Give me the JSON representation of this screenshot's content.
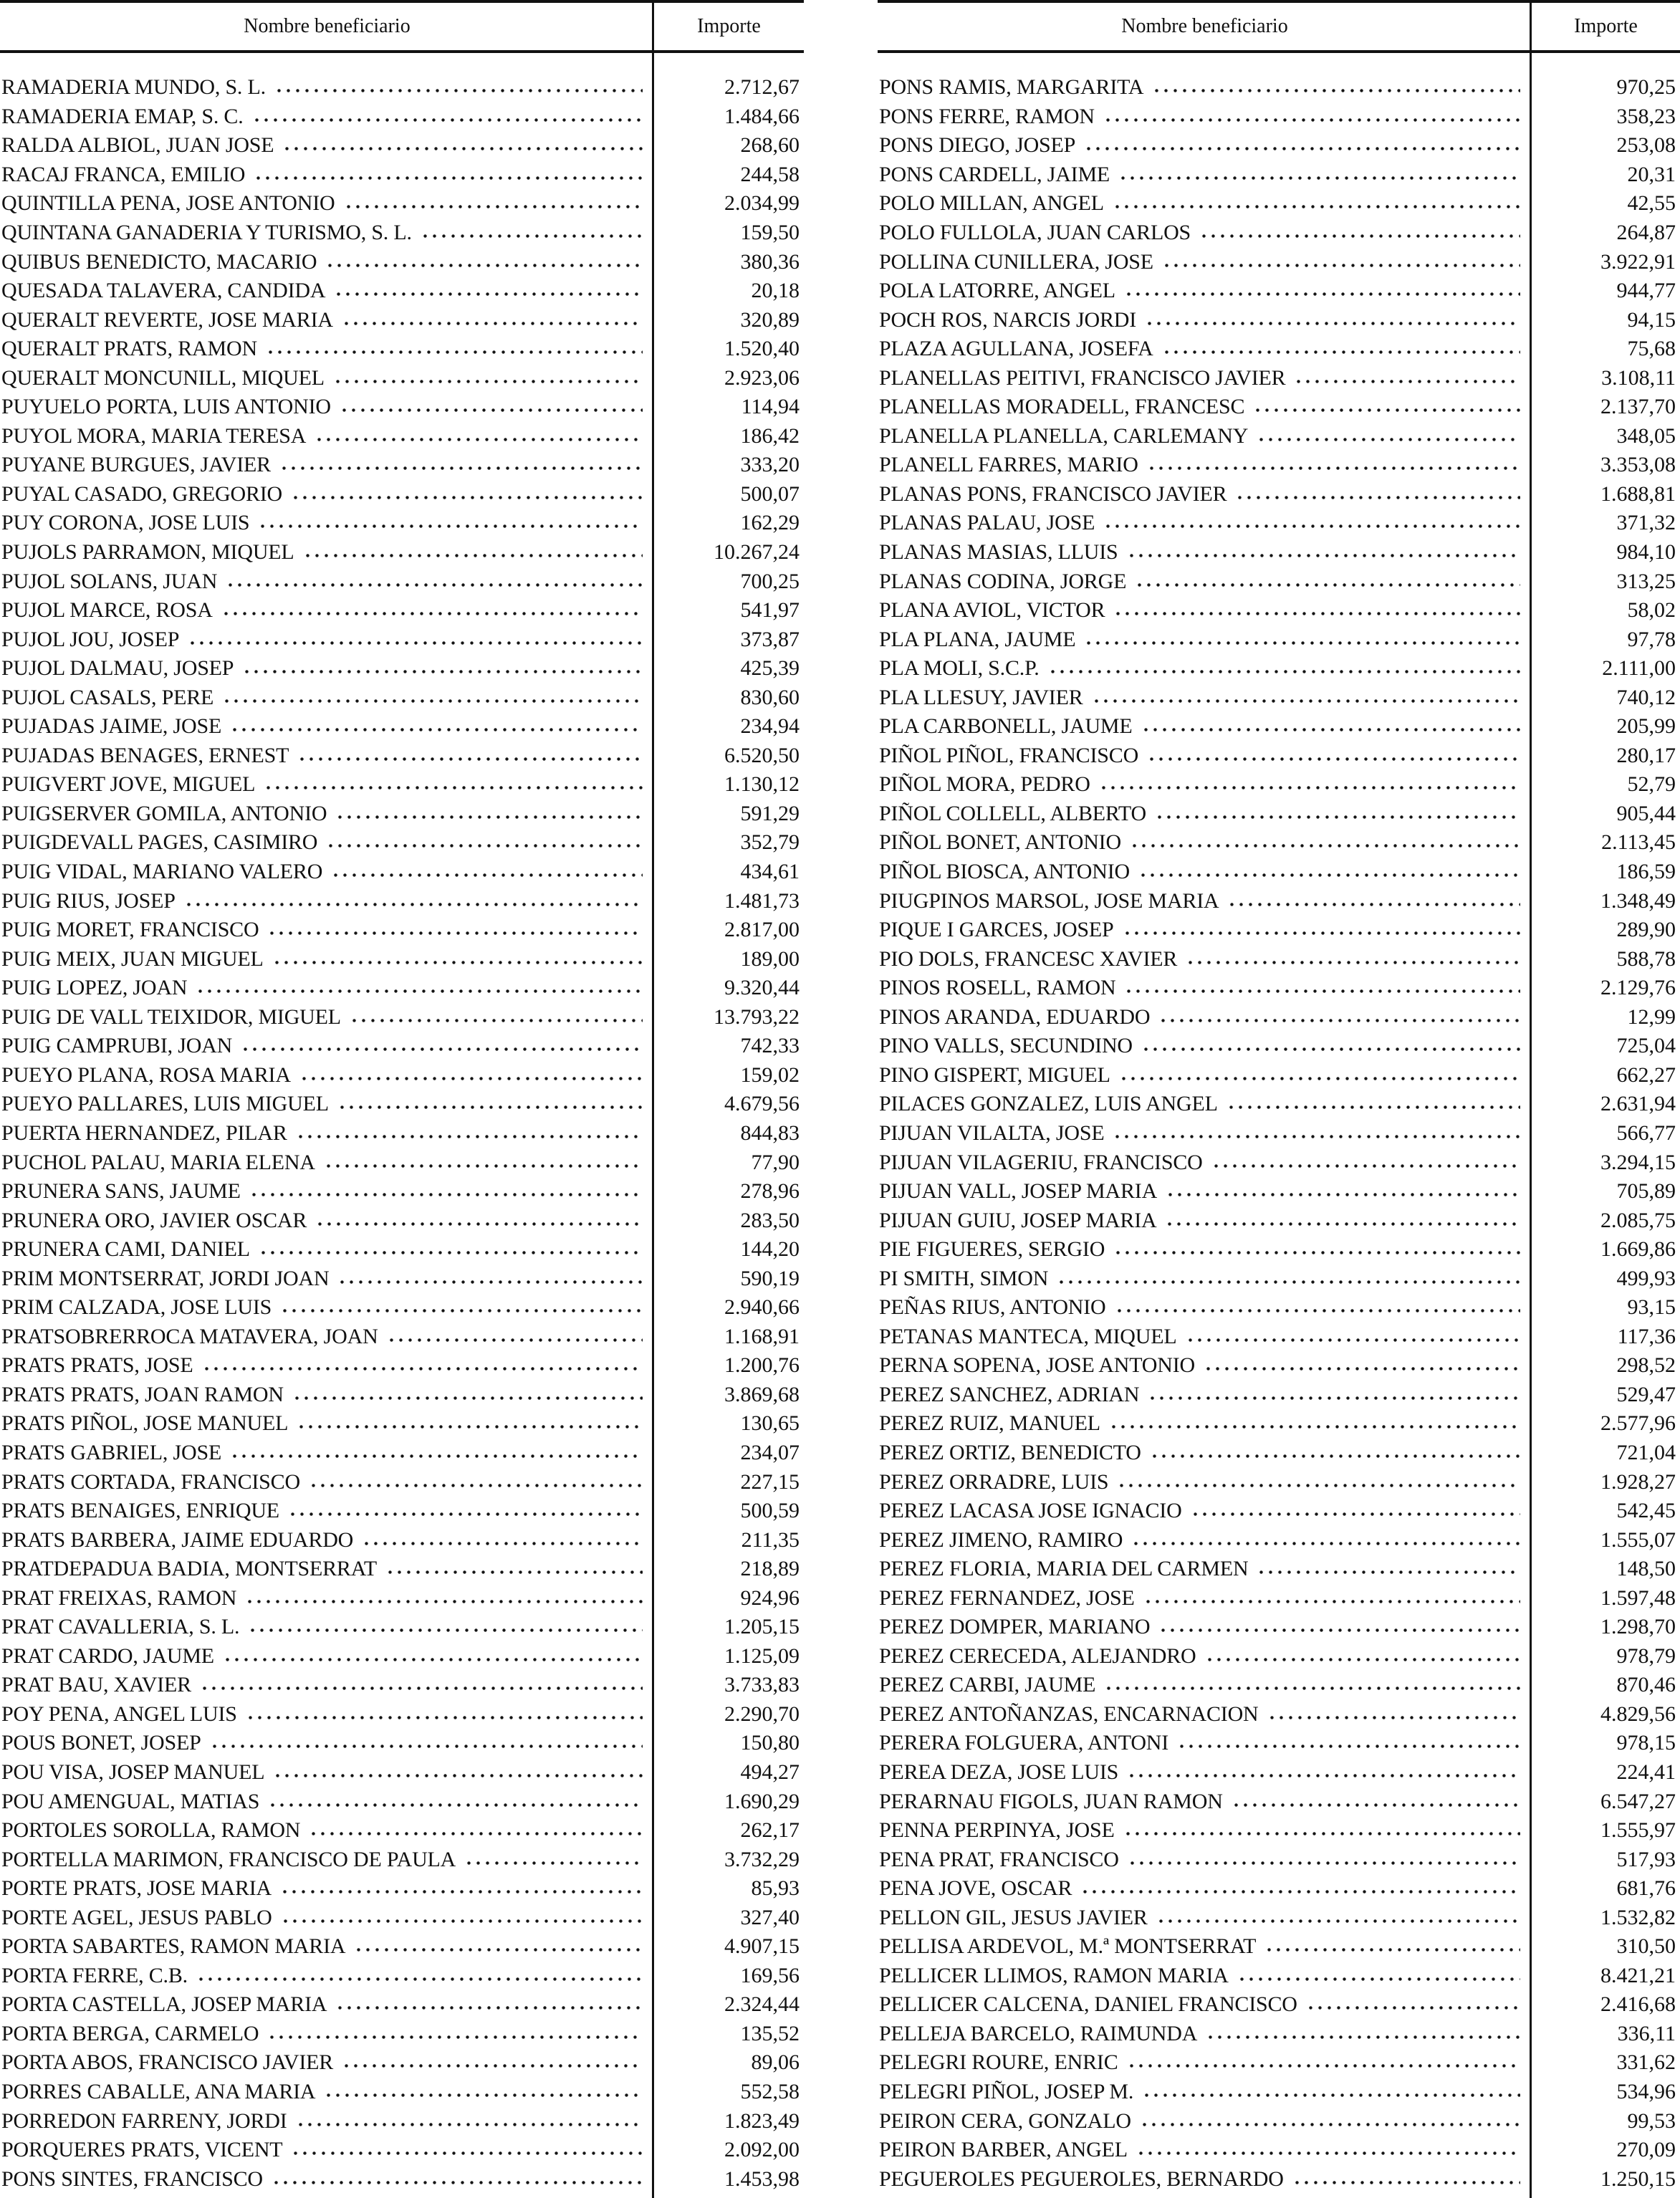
{
  "header": {
    "name_label": "Nombre beneficiario",
    "amount_label": "Importe"
  },
  "left_table": {
    "rows": [
      {
        "name": "RAMADERIA MUNDO, S. L.",
        "amount": "2.712,67"
      },
      {
        "name": "RAMADERIA EMAP, S. C.",
        "amount": "1.484,66"
      },
      {
        "name": "RALDA ALBIOL, JUAN JOSE",
        "amount": "268,60"
      },
      {
        "name": "RACAJ FRANCA, EMILIO",
        "amount": "244,58"
      },
      {
        "name": "QUINTILLA PENA, JOSE ANTONIO",
        "amount": "2.034,99"
      },
      {
        "name": "QUINTANA GANADERIA Y TURISMO, S. L.",
        "amount": "159,50"
      },
      {
        "name": "QUIBUS BENEDICTO, MACARIO",
        "amount": "380,36"
      },
      {
        "name": "QUESADA TALAVERA, CANDIDA",
        "amount": "20,18"
      },
      {
        "name": "QUERALT REVERTE, JOSE MARIA",
        "amount": "320,89"
      },
      {
        "name": "QUERALT PRATS, RAMON",
        "amount": "1.520,40"
      },
      {
        "name": "QUERALT MONCUNILL, MIQUEL",
        "amount": "2.923,06"
      },
      {
        "name": "PUYUELO PORTA, LUIS ANTONIO",
        "amount": "114,94"
      },
      {
        "name": "PUYOL MORA, MARIA TERESA",
        "amount": "186,42"
      },
      {
        "name": "PUYANE BURGUES, JAVIER",
        "amount": "333,20"
      },
      {
        "name": "PUYAL CASADO, GREGORIO",
        "amount": "500,07"
      },
      {
        "name": "PUY CORONA, JOSE LUIS",
        "amount": "162,29"
      },
      {
        "name": "PUJOLS PARRAMON, MIQUEL",
        "amount": "10.267,24"
      },
      {
        "name": "PUJOL SOLANS, JUAN",
        "amount": "700,25"
      },
      {
        "name": "PUJOL MARCE, ROSA",
        "amount": "541,97"
      },
      {
        "name": "PUJOL JOU, JOSEP",
        "amount": "373,87"
      },
      {
        "name": "PUJOL DALMAU, JOSEP",
        "amount": "425,39"
      },
      {
        "name": "PUJOL CASALS, PERE",
        "amount": "830,60"
      },
      {
        "name": "PUJADAS JAIME, JOSE",
        "amount": "234,94"
      },
      {
        "name": "PUJADAS BENAGES, ERNEST",
        "amount": "6.520,50"
      },
      {
        "name": "PUIGVERT JOVE, MIGUEL",
        "amount": "1.130,12"
      },
      {
        "name": "PUIGSERVER GOMILA, ANTONIO",
        "amount": "591,29"
      },
      {
        "name": "PUIGDEVALL PAGES, CASIMIRO",
        "amount": "352,79"
      },
      {
        "name": "PUIG VIDAL, MARIANO VALERO",
        "amount": "434,61"
      },
      {
        "name": "PUIG RIUS, JOSEP",
        "amount": "1.481,73"
      },
      {
        "name": "PUIG MORET, FRANCISCO",
        "amount": "2.817,00"
      },
      {
        "name": "PUIG MEIX, JUAN MIGUEL",
        "amount": "189,00"
      },
      {
        "name": "PUIG LOPEZ, JOAN",
        "amount": "9.320,44"
      },
      {
        "name": "PUIG DE VALL TEIXIDOR, MIGUEL",
        "amount": "13.793,22"
      },
      {
        "name": "PUIG CAMPRUBI, JOAN",
        "amount": "742,33"
      },
      {
        "name": "PUEYO PLANA, ROSA MARIA",
        "amount": "159,02"
      },
      {
        "name": "PUEYO PALLARES, LUIS MIGUEL",
        "amount": "4.679,56"
      },
      {
        "name": "PUERTA HERNANDEZ, PILAR",
        "amount": "844,83"
      },
      {
        "name": "PUCHOL PALAU, MARIA ELENA",
        "amount": "77,90"
      },
      {
        "name": "PRUNERA SANS, JAUME",
        "amount": "278,96"
      },
      {
        "name": "PRUNERA ORO, JAVIER OSCAR",
        "amount": "283,50"
      },
      {
        "name": "PRUNERA CAMI, DANIEL",
        "amount": "144,20"
      },
      {
        "name": "PRIM MONTSERRAT, JORDI JOAN",
        "amount": "590,19"
      },
      {
        "name": "PRIM CALZADA, JOSE LUIS",
        "amount": "2.940,66"
      },
      {
        "name": "PRATSOBRERROCA MATAVERA, JOAN",
        "amount": "1.168,91"
      },
      {
        "name": "PRATS PRATS, JOSE",
        "amount": "1.200,76"
      },
      {
        "name": "PRATS PRATS, JOAN RAMON",
        "amount": "3.869,68"
      },
      {
        "name": "PRATS PIÑOL, JOSE MANUEL",
        "amount": "130,65"
      },
      {
        "name": "PRATS GABRIEL, JOSE",
        "amount": "234,07"
      },
      {
        "name": "PRATS CORTADA, FRANCISCO",
        "amount": "227,15"
      },
      {
        "name": "PRATS BENAIGES, ENRIQUE",
        "amount": "500,59"
      },
      {
        "name": "PRATS BARBERA, JAIME EDUARDO",
        "amount": "211,35"
      },
      {
        "name": "PRATDEPADUA BADIA, MONTSERRAT",
        "amount": "218,89"
      },
      {
        "name": "PRAT FREIXAS, RAMON",
        "amount": "924,96"
      },
      {
        "name": "PRAT CAVALLERIA, S. L.",
        "amount": "1.205,15"
      },
      {
        "name": "PRAT CARDO, JAUME",
        "amount": "1.125,09"
      },
      {
        "name": "PRAT BAU, XAVIER",
        "amount": "3.733,83"
      },
      {
        "name": "POY PENA, ANGEL LUIS",
        "amount": "2.290,70"
      },
      {
        "name": "POUS BONET, JOSEP",
        "amount": "150,80"
      },
      {
        "name": "POU VISA, JOSEP MANUEL",
        "amount": "494,27"
      },
      {
        "name": "POU AMENGUAL, MATIAS",
        "amount": "1.690,29"
      },
      {
        "name": "PORTOLES SOROLLA, RAMON",
        "amount": "262,17"
      },
      {
        "name": "PORTELLA MARIMON, FRANCISCO DE PAULA",
        "amount": "3.732,29"
      },
      {
        "name": "PORTE PRATS, JOSE MARIA",
        "amount": "85,93"
      },
      {
        "name": "PORTE AGEL, JESUS PABLO",
        "amount": "327,40"
      },
      {
        "name": "PORTA SABARTES, RAMON MARIA",
        "amount": "4.907,15"
      },
      {
        "name": "PORTA FERRE, C.B.",
        "amount": "169,56"
      },
      {
        "name": "PORTA CASTELLA, JOSEP MARIA",
        "amount": "2.324,44"
      },
      {
        "name": "PORTA BERGA, CARMELO",
        "amount": "135,52"
      },
      {
        "name": "PORTA ABOS, FRANCISCO JAVIER",
        "amount": "89,06"
      },
      {
        "name": "PORRES CABALLE, ANA MARIA",
        "amount": "552,58"
      },
      {
        "name": "PORREDON FARRENY, JORDI",
        "amount": "1.823,49"
      },
      {
        "name": "PORQUERES PRATS, VICENT",
        "amount": "2.092,00"
      },
      {
        "name": "PONS SINTES, FRANCISCO",
        "amount": "1.453,98"
      }
    ]
  },
  "right_table": {
    "rows": [
      {
        "name": "PONS RAMIS, MARGARITA",
        "amount": "970,25"
      },
      {
        "name": "PONS FERRE, RAMON",
        "amount": "358,23"
      },
      {
        "name": "PONS DIEGO, JOSEP",
        "amount": "253,08"
      },
      {
        "name": "PONS CARDELL, JAIME",
        "amount": "20,31"
      },
      {
        "name": "POLO MILLAN, ANGEL",
        "amount": "42,55"
      },
      {
        "name": "POLO FULLOLA, JUAN CARLOS",
        "amount": "264,87"
      },
      {
        "name": "POLLINA CUNILLERA, JOSE",
        "amount": "3.922,91"
      },
      {
        "name": "POLA LATORRE, ANGEL",
        "amount": "944,77"
      },
      {
        "name": "POCH ROS, NARCIS JORDI",
        "amount": "94,15"
      },
      {
        "name": "PLAZA AGULLANA, JOSEFA",
        "amount": "75,68"
      },
      {
        "name": "PLANELLAS PEITIVI, FRANCISCO JAVIER",
        "amount": "3.108,11"
      },
      {
        "name": "PLANELLAS MORADELL, FRANCESC",
        "amount": "2.137,70"
      },
      {
        "name": "PLANELLA PLANELLA, CARLEMANY",
        "amount": "348,05"
      },
      {
        "name": "PLANELL FARRES, MARIO",
        "amount": "3.353,08"
      },
      {
        "name": "PLANAS PONS, FRANCISCO JAVIER",
        "amount": "1.688,81"
      },
      {
        "name": "PLANAS PALAU, JOSE",
        "amount": "371,32"
      },
      {
        "name": "PLANAS MASIAS, LLUIS",
        "amount": "984,10"
      },
      {
        "name": "PLANAS CODINA, JORGE",
        "amount": "313,25"
      },
      {
        "name": "PLANA AVIOL, VICTOR",
        "amount": "58,02"
      },
      {
        "name": "PLA PLANA, JAUME",
        "amount": "97,78"
      },
      {
        "name": "PLA MOLI, S.C.P.",
        "amount": "2.111,00"
      },
      {
        "name": "PLA LLESUY, JAVIER",
        "amount": "740,12"
      },
      {
        "name": "PLA CARBONELL, JAUME",
        "amount": "205,99"
      },
      {
        "name": "PIÑOL PIÑOL, FRANCISCO",
        "amount": "280,17"
      },
      {
        "name": "PIÑOL MORA, PEDRO",
        "amount": "52,79"
      },
      {
        "name": "PIÑOL COLLELL, ALBERTO",
        "amount": "905,44"
      },
      {
        "name": "PIÑOL BONET, ANTONIO",
        "amount": "2.113,45"
      },
      {
        "name": "PIÑOL BIOSCA, ANTONIO",
        "amount": "186,59"
      },
      {
        "name": "PIUGPINOS MARSOL, JOSE MARIA",
        "amount": "1.348,49"
      },
      {
        "name": "PIQUE I GARCES, JOSEP",
        "amount": "289,90"
      },
      {
        "name": "PIO DOLS, FRANCESC XAVIER",
        "amount": "588,78"
      },
      {
        "name": "PINOS ROSELL, RAMON",
        "amount": "2.129,76"
      },
      {
        "name": "PINOS ARANDA, EDUARDO",
        "amount": "12,99"
      },
      {
        "name": "PINO VALLS, SECUNDINO",
        "amount": "725,04"
      },
      {
        "name": "PINO GISPERT, MIGUEL",
        "amount": "662,27"
      },
      {
        "name": "PILACES GONZALEZ, LUIS ANGEL",
        "amount": "2.631,94"
      },
      {
        "name": "PIJUAN VILALTA, JOSE",
        "amount": "566,77"
      },
      {
        "name": "PIJUAN VILAGERIU, FRANCISCO",
        "amount": "3.294,15"
      },
      {
        "name": "PIJUAN VALL, JOSEP MARIA",
        "amount": "705,89"
      },
      {
        "name": "PIJUAN GUIU, JOSEP MARIA",
        "amount": "2.085,75"
      },
      {
        "name": "PIE FIGUERES, SERGIO",
        "amount": "1.669,86"
      },
      {
        "name": "PI SMITH, SIMON",
        "amount": "499,93"
      },
      {
        "name": "PEÑAS RIUS, ANTONIO",
        "amount": "93,15"
      },
      {
        "name": "PETANAS MANTECA, MIQUEL",
        "amount": "117,36"
      },
      {
        "name": "PERNA SOPENA, JOSE ANTONIO",
        "amount": "298,52"
      },
      {
        "name": "PEREZ SANCHEZ, ADRIAN",
        "amount": "529,47"
      },
      {
        "name": "PEREZ RUIZ, MANUEL",
        "amount": "2.577,96"
      },
      {
        "name": "PEREZ ORTIZ, BENEDICTO",
        "amount": "721,04"
      },
      {
        "name": "PEREZ ORRADRE, LUIS",
        "amount": "1.928,27"
      },
      {
        "name": "PEREZ LACASA JOSE IGNACIO",
        "amount": "542,45"
      },
      {
        "name": "PEREZ JIMENO, RAMIRO",
        "amount": "1.555,07"
      },
      {
        "name": "PEREZ FLORIA, MARIA DEL CARMEN",
        "amount": "148,50"
      },
      {
        "name": "PEREZ FERNANDEZ, JOSE",
        "amount": "1.597,48"
      },
      {
        "name": "PEREZ DOMPER, MARIANO",
        "amount": "1.298,70"
      },
      {
        "name": "PEREZ CERECEDA, ALEJANDRO",
        "amount": "978,79"
      },
      {
        "name": "PEREZ CARBI, JAUME",
        "amount": "870,46"
      },
      {
        "name": "PEREZ ANTOÑANZAS, ENCARNACION",
        "amount": "4.829,56"
      },
      {
        "name": "PERERA FOLGUERA, ANTONI",
        "amount": "978,15"
      },
      {
        "name": "PEREA DEZA, JOSE LUIS",
        "amount": "224,41"
      },
      {
        "name": "PERARNAU FIGOLS, JUAN RAMON",
        "amount": "6.547,27"
      },
      {
        "name": "PENNA PERPINYA, JOSE",
        "amount": "1.555,97"
      },
      {
        "name": "PENA PRAT, FRANCISCO",
        "amount": "517,93"
      },
      {
        "name": "PENA JOVE, OSCAR",
        "amount": "681,76"
      },
      {
        "name": "PELLON GIL, JESUS JAVIER",
        "amount": "1.532,82"
      },
      {
        "name": "PELLISA ARDEVOL, M.ª MONTSERRAT",
        "amount": "310,50"
      },
      {
        "name": "PELLICER LLIMOS, RAMON MARIA",
        "amount": "8.421,21"
      },
      {
        "name": "PELLICER CALCENA, DANIEL FRANCISCO",
        "amount": "2.416,68"
      },
      {
        "name": "PELLEJA BARCELO, RAIMUNDA",
        "amount": "336,11"
      },
      {
        "name": "PELEGRI ROURE, ENRIC",
        "amount": "331,62"
      },
      {
        "name": "PELEGRI PIÑOL, JOSEP M.",
        "amount": "534,96"
      },
      {
        "name": "PEIRON CERA, GONZALO",
        "amount": "99,53"
      },
      {
        "name": "PEIRON BARBER, ANGEL",
        "amount": "270,09"
      },
      {
        "name": "PEGUEROLES PEGUEROLES, BERNARDO",
        "amount": "1.250,15"
      }
    ]
  }
}
